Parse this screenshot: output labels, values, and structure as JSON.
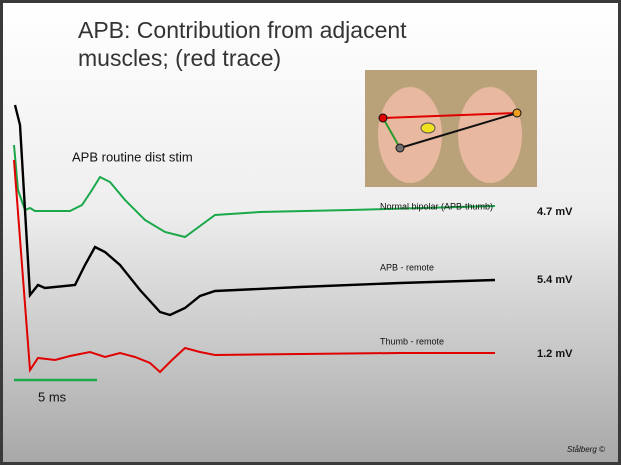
{
  "slide": {
    "title": "APB: Contribution from adjacent muscles; (red trace)",
    "stim_label": "APB routine dist stim",
    "traces": [
      {
        "label": "Normal bipolar (APB-thumb)",
        "amplitude": "4.7 mV"
      },
      {
        "label": "APB - remote",
        "amplitude": "5.4 mV"
      },
      {
        "label": "Thumb - remote",
        "amplitude": "1.2 mV"
      }
    ],
    "scale_label": "5 ms",
    "credit": "Stålberg ©"
  }
}
